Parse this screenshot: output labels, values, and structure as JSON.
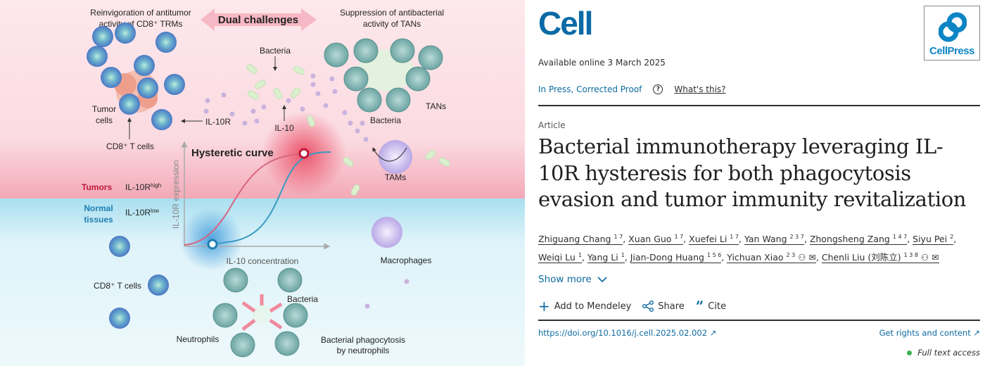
{
  "figure": {
    "left_heading": [
      "Reinvigoration of antitumor",
      "activity of CD8⁺ TRMs"
    ],
    "center_heading": "Dual challenges",
    "right_heading": [
      "Suppression of antibacterial",
      "activity of TANs"
    ],
    "labels": {
      "bacteria_top": "Bacteria",
      "il10r": "IL-10R",
      "il10": "IL-10",
      "tumor_cells": [
        "Tumor",
        "cells"
      ],
      "cd8_t_cells_top": "CD8⁺ T cells",
      "tans": "TANs",
      "bacteria_tans": "Bacteria",
      "tams": "TAMs",
      "hysteretic_curve": "Hysteretic curve",
      "tumors": "Tumors",
      "il10r_high": "IL-10R",
      "high_sup": "high",
      "normal_tissues": [
        "Normal",
        "tissues"
      ],
      "il10r_low": "IL-10R",
      "low_sup": "low",
      "y_axis": "IL-10R expression",
      "x_axis": "IL-10 concentration",
      "macrophages": "Macrophages",
      "cd8_t_cells_bottom": "CD8⁺ T cells",
      "bacteria_bottom": "Bacteria",
      "neutrophils": "Neutrophils",
      "phagocytosis": [
        "Bacterial phagocytosis",
        "by neutrophils"
      ]
    },
    "colors": {
      "tumor_bg": "#fde4ea",
      "normal_bg": "#dff3f8",
      "tumor_red": "#c0163a",
      "normal_blue": "#1f7fb3",
      "curve_red": "#d6657f",
      "curve_blue": "#3a9ac0"
    }
  },
  "article": {
    "journal_logo": "Cell",
    "publisher_logo": "CellPress",
    "available_online": "Available online 3 March 2025",
    "status": "In Press, Corrected Proof",
    "help_icon": "question-circle-icon",
    "whats_this": "What's this?",
    "type": "Article",
    "title": "Bacterial immunotherapy leveraging IL-10R hysteresis for both phagocytosis evasion and tumor immunity revitalization",
    "authors": [
      {
        "name": "Zhiguang Chang",
        "aff": "1 7"
      },
      {
        "name": "Xuan Guo",
        "aff": "1 7"
      },
      {
        "name": "Xuefei Li",
        "aff": "1 7"
      },
      {
        "name": "Yan Wang",
        "aff": "2 3 7"
      },
      {
        "name": "Zhongsheng Zang",
        "aff": "1 4 7"
      },
      {
        "name": "Siyu Pei",
        "aff": "2"
      },
      {
        "name": "Weiqi Lu",
        "aff": "1"
      },
      {
        "name": "Yang Li",
        "aff": "1"
      },
      {
        "name": "Jian-Dong Huang",
        "aff": "1 5 6"
      },
      {
        "name": "Yichuan Xiao",
        "aff": "2 3"
      },
      {
        "name": "Chenli Liu (刘陈立)",
        "aff": "1 3 8"
      }
    ],
    "show_more": "Show more",
    "actions": {
      "mendeley": "Add to Mendeley",
      "share": "Share",
      "cite": "Cite"
    },
    "doi": "https://doi.org/10.1016/j.cell.2025.02.002",
    "rights": "Get rights and content",
    "access": "Full text access",
    "colors": {
      "brand": "#0b6aa6",
      "link": "#0c6aa0",
      "access_dot": "#3fb34f"
    }
  }
}
